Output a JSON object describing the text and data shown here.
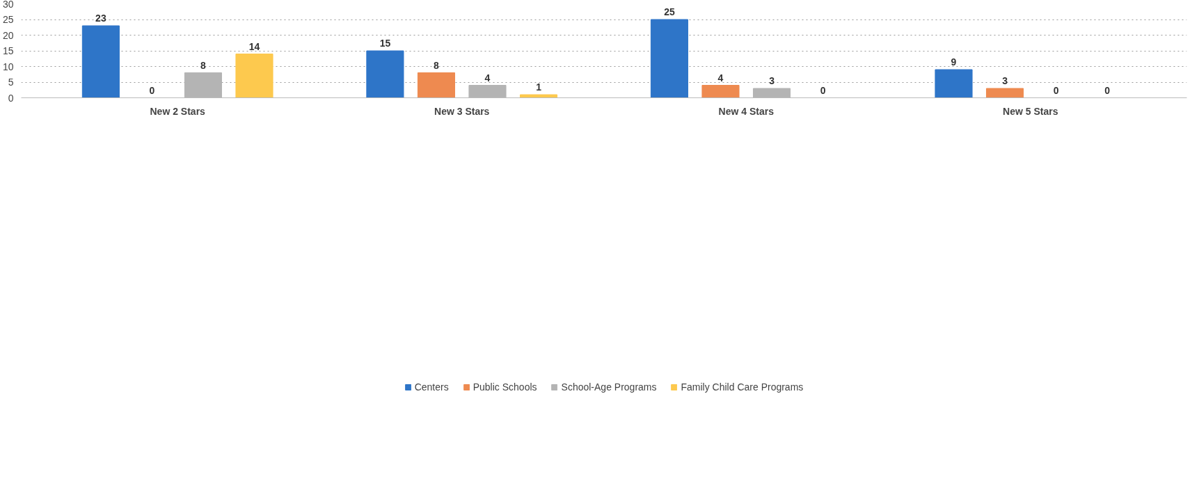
{
  "chart_data": {
    "type": "bar",
    "categories": [
      "New 2 Stars",
      "New 3 Stars",
      "New 4 Stars",
      "New 5 Stars"
    ],
    "series": [
      {
        "name": "Centers",
        "color": "#2e75c8",
        "values": [
          23,
          15,
          25,
          9
        ]
      },
      {
        "name": "Public Schools",
        "color": "#ee8a50",
        "values": [
          0,
          8,
          4,
          3
        ]
      },
      {
        "name": "School-Age Programs",
        "color": "#b4b4b4",
        "values": [
          8,
          4,
          3,
          0
        ]
      },
      {
        "name": "Family Child Care Programs",
        "color": "#fdc94e",
        "values": [
          14,
          1,
          0,
          0
        ]
      }
    ],
    "ylim": [
      0,
      30
    ],
    "yticks": [
      0,
      5,
      10,
      15,
      20,
      25,
      30
    ],
    "grid": "y",
    "legend": "bottom",
    "data_labels": true
  }
}
